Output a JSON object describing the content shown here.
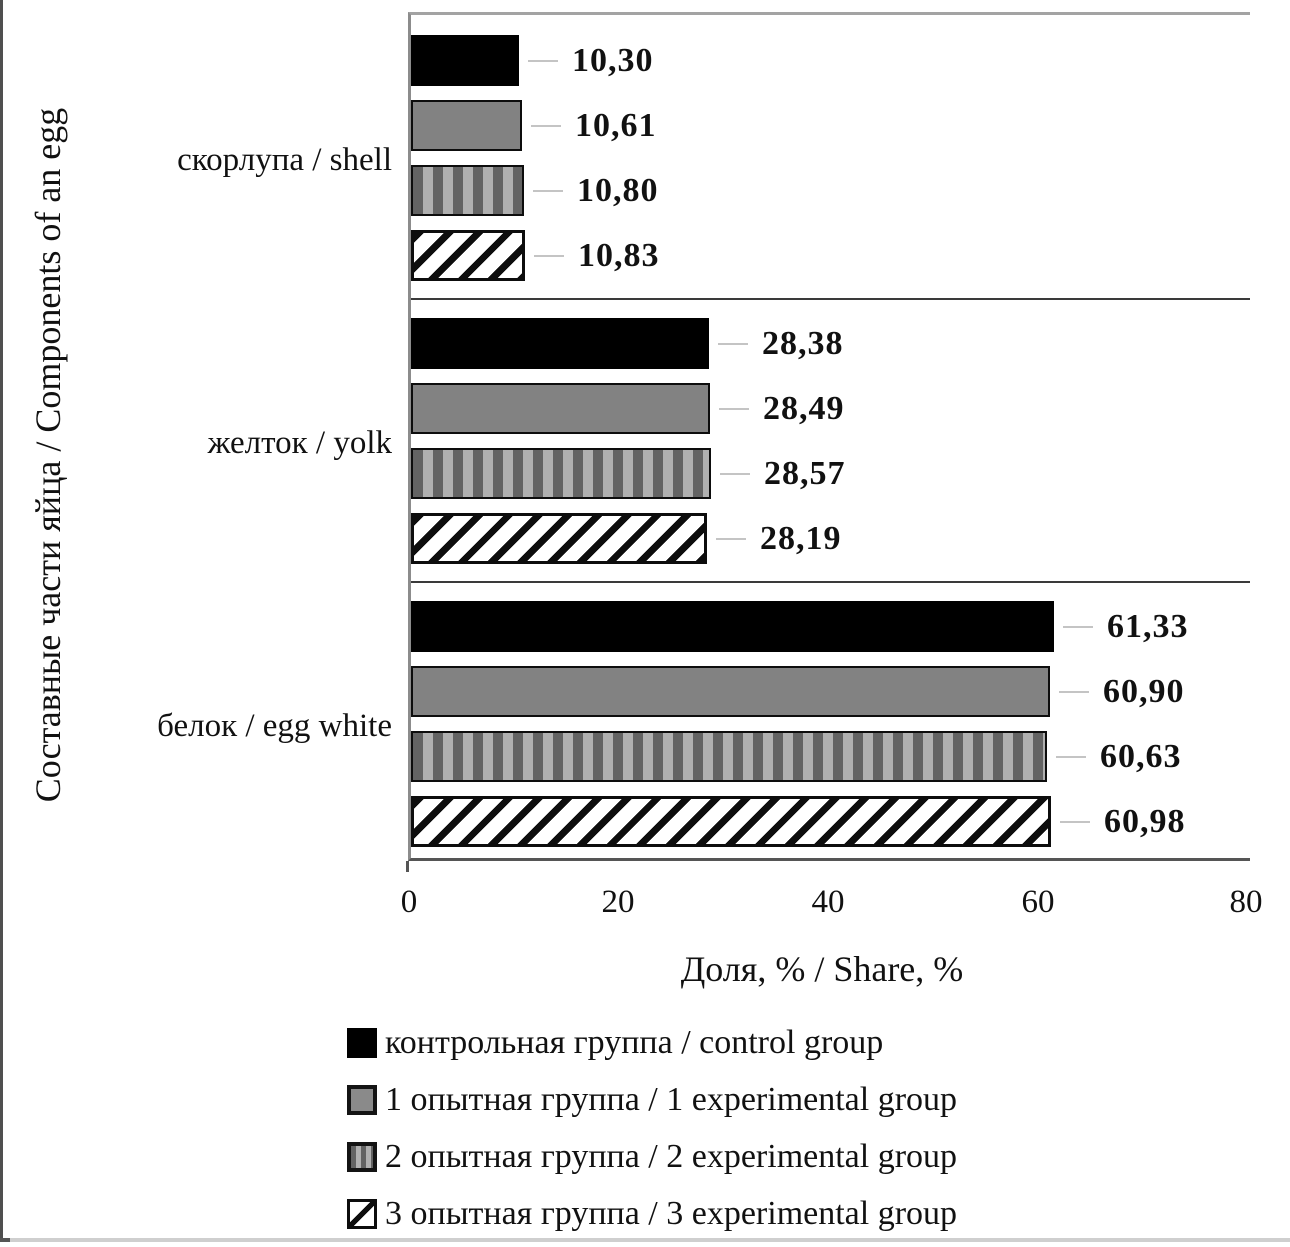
{
  "chart_data": {
    "type": "bar",
    "orientation": "horizontal",
    "title": "",
    "xlabel": "Доля, % / Share, %",
    "ylabel": "Составные части яйца / Components of an egg",
    "xlim": [
      0,
      80
    ],
    "xticks": [
      "0",
      "20",
      "40",
      "60",
      "80"
    ],
    "grid": false,
    "legend_position": "bottom-left",
    "value_label_decimal": "comma",
    "categories": [
      "скорлупа / shell",
      "желток / yolk",
      "белок / egg white"
    ],
    "series": [
      {
        "name": "контрольная группа / control group",
        "pattern": "solid-black",
        "color": "#000000",
        "values": [
          10.3,
          28.38,
          61.33
        ],
        "labels": [
          "10,30",
          "28,38",
          "61,33"
        ]
      },
      {
        "name": "1 опытная группа / 1 experimental group",
        "pattern": "solid-gray",
        "color": "#828282",
        "values": [
          10.61,
          28.49,
          60.9
        ],
        "labels": [
          "10,61",
          "28,49",
          "60,90"
        ]
      },
      {
        "name": "2 опытная группа / 2 experimental group",
        "pattern": "vertical-stripes",
        "color": "#636363",
        "values": [
          10.8,
          28.57,
          60.63
        ],
        "labels": [
          "10,80",
          "28,57",
          "60,63"
        ]
      },
      {
        "name": "3 опытная группа / 3 experimental group",
        "pattern": "diagonal-hatch",
        "color": "#000000",
        "values": [
          10.83,
          28.19,
          60.98
        ],
        "labels": [
          "10,83",
          "28,19",
          "60,98"
        ]
      }
    ],
    "axis_colors": {
      "frame_top": "#a3a3a3",
      "axis_left": "#8c8c8c",
      "axis_bottom": "#555555",
      "separator": "#3a3a3a",
      "leader_line": "#c4c4c4"
    }
  }
}
